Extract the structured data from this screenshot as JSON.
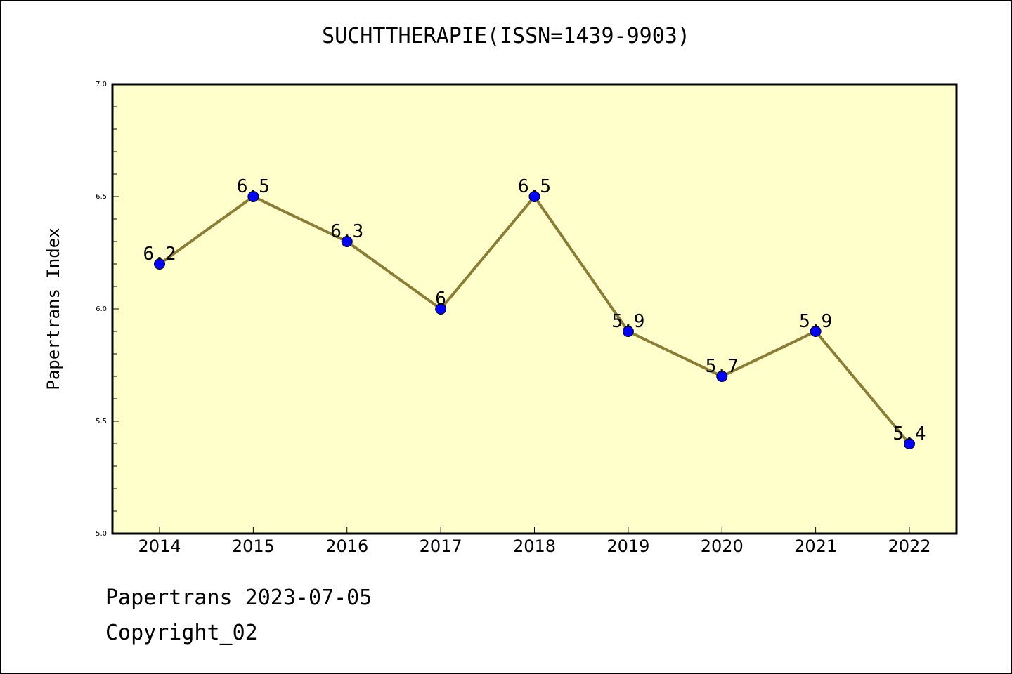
{
  "chart_data": {
    "type": "line",
    "title": "SUCHTTHERAPIE(ISSN=1439-9903)",
    "xlabel": "",
    "ylabel": "Papertrans Index",
    "x": [
      "2014",
      "2015",
      "2016",
      "2017",
      "2018",
      "2019",
      "2020",
      "2021",
      "2022"
    ],
    "values": [
      6.2,
      6.5,
      6.3,
      6.0,
      6.5,
      5.9,
      5.7,
      5.9,
      5.4
    ],
    "data_labels": [
      "6.2",
      "6.5",
      "6.3",
      "6",
      "6.5",
      "5.9",
      "5.7",
      "5.9",
      "5.4"
    ],
    "ylim": [
      5.0,
      7.0
    ],
    "yticks": [
      "5.0",
      "5.5",
      "6.0",
      "6.5",
      "7.0"
    ],
    "grid": false,
    "legend": "none",
    "colors": {
      "plot_background": "#ffffcc",
      "line": "#8b7d35",
      "marker": "#0000ff"
    }
  },
  "footer": {
    "line1": "Papertrans 2023-07-05",
    "line2": "Copyright_02"
  }
}
